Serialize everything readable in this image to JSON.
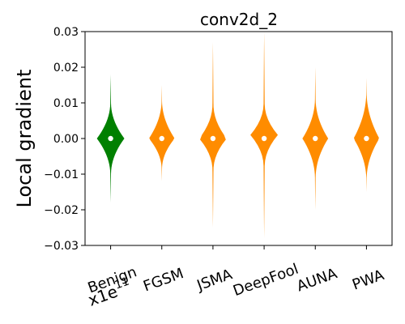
{
  "chart_data": {
    "type": "violin",
    "title": "conv2d_2",
    "ylabel": "Local gradient",
    "ylim": [
      -0.03,
      0.03
    ],
    "yticks": [
      -0.03,
      -0.02,
      -0.01,
      0.0,
      0.01,
      0.02,
      0.03
    ],
    "ytick_labels": [
      "−0.03",
      "−0.02",
      "−0.01",
      "0.00",
      "0.01",
      "0.02",
      "0.03"
    ],
    "grid": false,
    "categories": [
      "Benign",
      "FGSM",
      "JSMA",
      "DeepFool",
      "AUNA",
      "PWA"
    ],
    "scale_annotation": {
      "base": "x1e",
      "exponent": "11"
    },
    "colors": {
      "Benign": "#008000",
      "FGSM": "#ff8c00",
      "JSMA": "#ff8c00",
      "DeepFool": "#ff8c00",
      "AUNA": "#ff8c00",
      "PWA": "#ff8c00"
    },
    "series": [
      {
        "category": "Benign",
        "median": 0.0,
        "min": -0.018,
        "max": 0.018,
        "max_width_at": 0.0
      },
      {
        "category": "FGSM",
        "median": 0.0,
        "min": -0.012,
        "max": 0.015,
        "max_width_at": 0.0
      },
      {
        "category": "JSMA",
        "median": 0.0,
        "min": -0.025,
        "max": 0.027,
        "max_width_at": 0.0
      },
      {
        "category": "DeepFool",
        "median": 0.0,
        "min": -0.028,
        "max": 0.03,
        "max_width_at": 0.001
      },
      {
        "category": "AUNA",
        "median": 0.0,
        "min": -0.02,
        "max": 0.02,
        "max_width_at": 0.0
      },
      {
        "category": "PWA",
        "median": 0.0,
        "min": -0.015,
        "max": 0.017,
        "max_width_at": 0.0
      }
    ]
  }
}
